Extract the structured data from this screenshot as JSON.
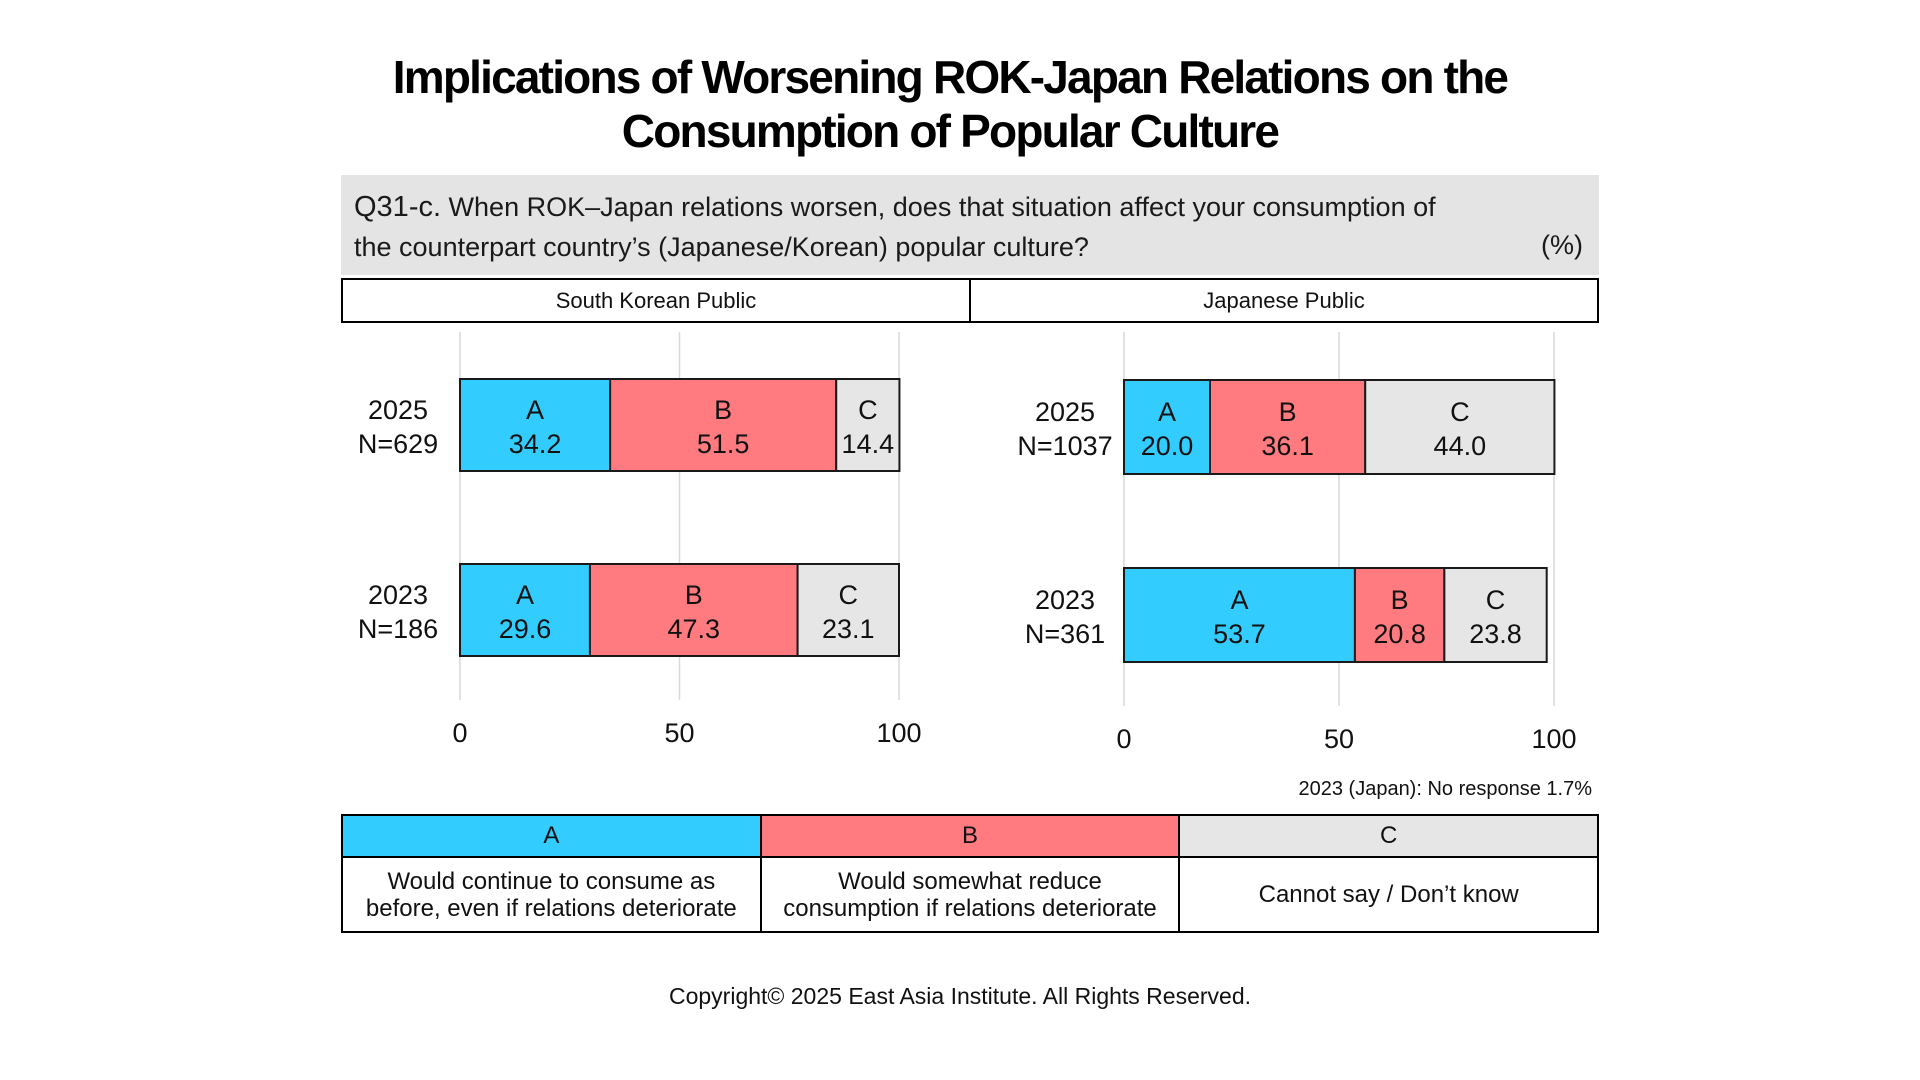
{
  "title_line1": "Implications of Worsening ROK-Japan Relations on the",
  "title_line2": "Consumption of Popular Culture",
  "question": {
    "number": "Q31-c.",
    "line1": "When ROK–Japan relations worsen, does that situation affect your consumption of",
    "line2": "the counterpart country’s (Japanese/Korean) popular culture?",
    "unit": "(%)"
  },
  "panels": [
    "South Korean Public",
    "Japanese Public"
  ],
  "footnote": "2023 (Japan): No response 1.7%",
  "legend": [
    {
      "key": "A",
      "desc_line1": "Would continue to consume as",
      "desc_line2": "before, even if relations deteriorate"
    },
    {
      "key": "B",
      "desc_line1": "Would somewhat reduce",
      "desc_line2": "consumption if relations deteriorate"
    },
    {
      "key": "C",
      "desc_line1": "Cannot say / Don’t know",
      "desc_line2": ""
    }
  ],
  "copyright": "Copyright© 2025 East Asia Institute. All Rights Reserved.",
  "colors": {
    "A": "#33ccff",
    "B": "#ff7b7f",
    "C": "#e6e6e6"
  },
  "chart_data": [
    {
      "type": "bar",
      "orientation": "horizontal",
      "stacked": true,
      "panel": "South Korean Public",
      "categories": [
        [
          "2025",
          "N=629"
        ],
        [
          "2023",
          "N=186"
        ]
      ],
      "series": [
        {
          "name": "A",
          "values": [
            34.2,
            29.6
          ]
        },
        {
          "name": "B",
          "values": [
            51.5,
            47.3
          ]
        },
        {
          "name": "C",
          "values": [
            14.4,
            23.1
          ]
        }
      ],
      "xlim": [
        0,
        100
      ],
      "xticks": [
        0,
        50,
        100
      ],
      "grid": true
    },
    {
      "type": "bar",
      "orientation": "horizontal",
      "stacked": true,
      "panel": "Japanese Public",
      "categories": [
        [
          "2025",
          "N=1037"
        ],
        [
          "2023",
          "N=361"
        ]
      ],
      "series": [
        {
          "name": "A",
          "values": [
            20.0,
            53.7
          ]
        },
        {
          "name": "B",
          "values": [
            36.1,
            20.8
          ]
        },
        {
          "name": "C",
          "values": [
            44.0,
            23.8
          ]
        }
      ],
      "xlim": [
        0,
        100
      ],
      "xticks": [
        0,
        50,
        100
      ],
      "grid": true
    }
  ]
}
